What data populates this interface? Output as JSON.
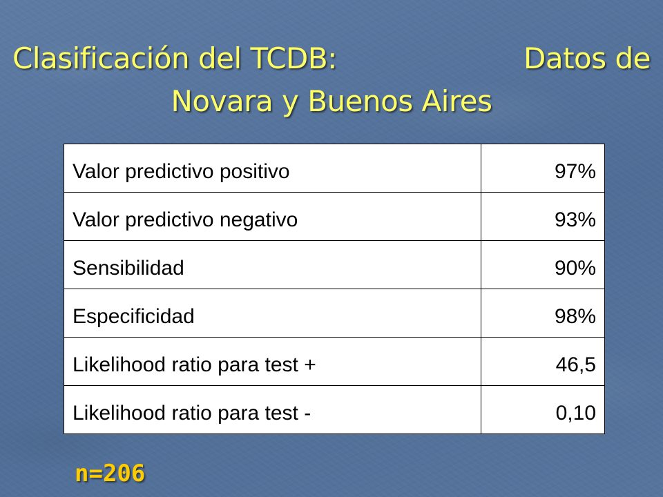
{
  "slide": {
    "title_part1": "Clasificación del TCDB:",
    "title_part2": "Datos de",
    "title_line2": "Novara y Buenos Aires",
    "footnote": "n=206"
  },
  "table": {
    "rows": [
      {
        "label": "Valor predictivo positivo",
        "value": "97%"
      },
      {
        "label": "Valor predictivo negativo",
        "value": "93%"
      },
      {
        "label": "Sensibilidad",
        "value": "90%"
      },
      {
        "label": "Especificidad",
        "value": "98%"
      },
      {
        "label": "Likelihood ratio para test +",
        "value": "46,5"
      },
      {
        "label": "Likelihood ratio para test -",
        "value": "0,10"
      }
    ]
  },
  "colors": {
    "background": "#56749c",
    "title": "#ffff66",
    "footnote": "#ffcc00",
    "table_background": "#ffffff",
    "table_border": "#000000"
  }
}
